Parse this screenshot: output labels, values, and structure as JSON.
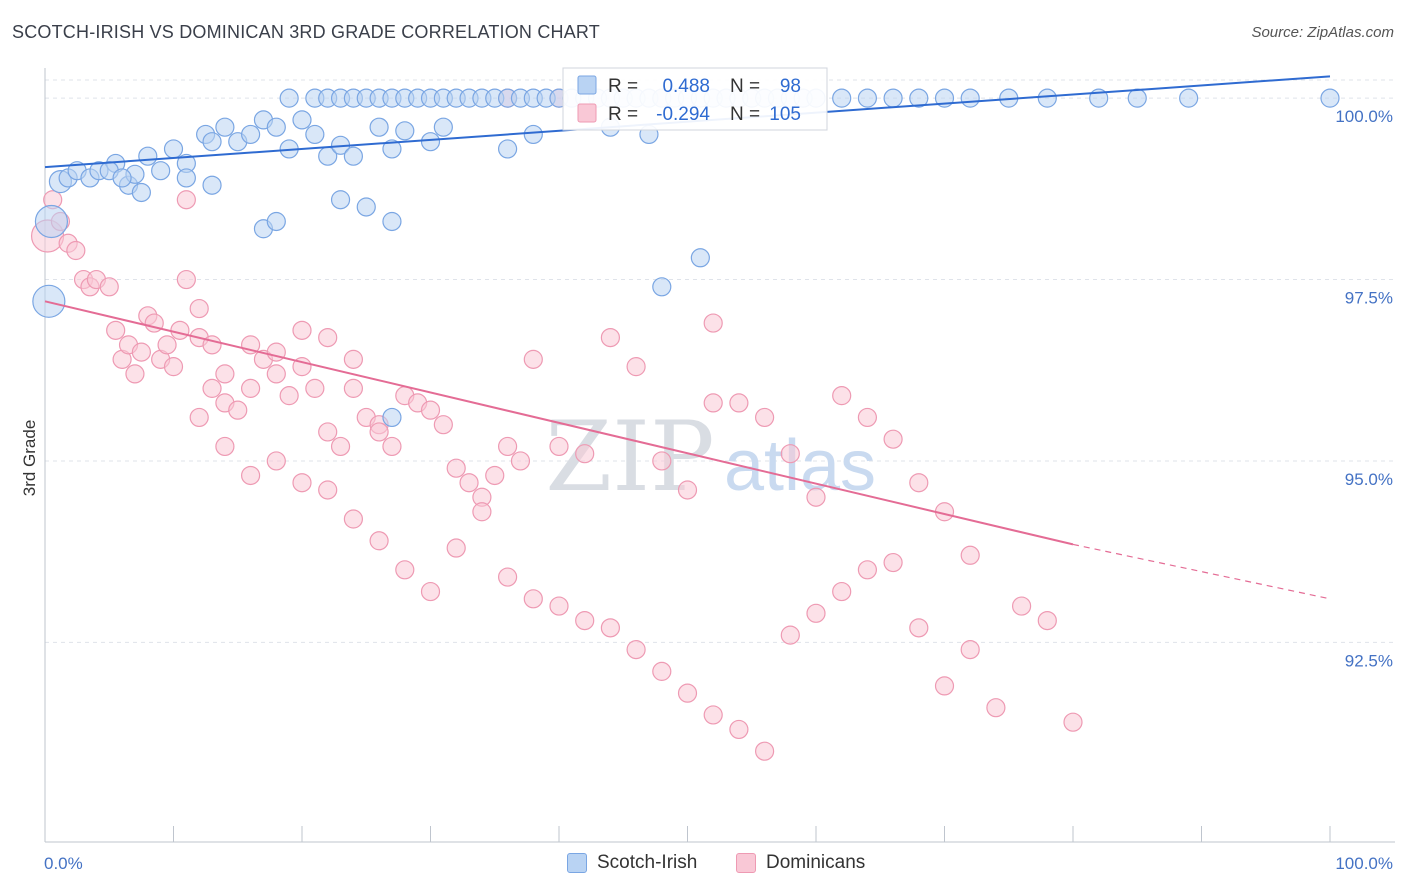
{
  "title": "SCOTCH-IRISH VS DOMINICAN 3RD GRADE CORRELATION CHART",
  "source": "Source: ZipAtlas.com",
  "watermark": {
    "zip": "ZIP",
    "atlas": "atlas"
  },
  "legend_box": {
    "rows": [
      {
        "r_label": "R =",
        "r_value": "0.488",
        "n_label": "N =",
        "n_value": "98",
        "color": "#8db4ea"
      },
      {
        "r_label": "R =",
        "r_value": "-0.294",
        "n_label": "N =",
        "n_value": "105",
        "color": "#f4a9c0"
      }
    ]
  },
  "bottom_legend": [
    {
      "label": "Scotch-Irish",
      "color": "#b9d3f3",
      "border": "#7aa6e3"
    },
    {
      "label": "Dominicans",
      "color": "#f9c8d6",
      "border": "#ee9ab3"
    }
  ],
  "chart_data": {
    "type": "scatter",
    "title": "SCOTCH-IRISH VS DOMINICAN 3RD GRADE CORRELATION CHART",
    "xlabel": "",
    "ylabel": "3rd Grade",
    "xlim": [
      0,
      100
    ],
    "ylim": [
      90.3,
      100.25
    ],
    "x_tick_labels": [
      "0.0%",
      "100.0%"
    ],
    "y_ticks": [
      92.5,
      95.0,
      97.5,
      100.0
    ],
    "y_tick_labels": [
      "92.5%",
      "95.0%",
      "97.5%",
      "100.0%"
    ],
    "grid": true,
    "legend": "top-center",
    "series": [
      {
        "name": "Scotch-Irish",
        "color": "#7aa6e3",
        "fill": "#b9d3f3",
        "r": 0.488,
        "n": 98,
        "trend": {
          "x": [
            0,
            100
          ],
          "y": [
            99.05,
            100.3
          ]
        },
        "points": [
          [
            0.5,
            98.3,
            16
          ],
          [
            0.3,
            97.2,
            16
          ],
          [
            1.2,
            98.85,
            11
          ],
          [
            1.8,
            98.9,
            9
          ],
          [
            2.5,
            99.0,
            9
          ],
          [
            3.5,
            98.9,
            9
          ],
          [
            4.2,
            99.0,
            9
          ],
          [
            5.5,
            99.1,
            9
          ],
          [
            6.5,
            98.8,
            9
          ],
          [
            7,
            98.95,
            9
          ],
          [
            8,
            99.2,
            9
          ],
          [
            9,
            99.0,
            9
          ],
          [
            10,
            99.3,
            9
          ],
          [
            11,
            99.1,
            9
          ],
          [
            12.5,
            99.5,
            9
          ],
          [
            13,
            99.4,
            9
          ],
          [
            14,
            99.6,
            9
          ],
          [
            15,
            99.4,
            9
          ],
          [
            16,
            99.5,
            9
          ],
          [
            17,
            99.7,
            9
          ],
          [
            18,
            99.6,
            9
          ],
          [
            19,
            99.3,
            9
          ],
          [
            20,
            99.7,
            9
          ],
          [
            21,
            99.5,
            9
          ],
          [
            22,
            99.2,
            9
          ],
          [
            23,
            99.35,
            9
          ],
          [
            24,
            99.2,
            9
          ],
          [
            26,
            99.6,
            9
          ],
          [
            27,
            99.3,
            9
          ],
          [
            28,
            99.55,
            9
          ],
          [
            30,
            99.4,
            9
          ],
          [
            31,
            99.6,
            9
          ],
          [
            5,
            99.0,
            9
          ],
          [
            6,
            98.9,
            9
          ],
          [
            7.5,
            98.7,
            9
          ],
          [
            11,
            98.9,
            9
          ],
          [
            13,
            98.8,
            9
          ],
          [
            17,
            98.2,
            9
          ],
          [
            18,
            98.3,
            9
          ],
          [
            23,
            98.6,
            9
          ],
          [
            27,
            98.3,
            9
          ],
          [
            25,
            98.5,
            9
          ],
          [
            36,
            99.3,
            9
          ],
          [
            38,
            99.5,
            9
          ],
          [
            44,
            99.6,
            9
          ],
          [
            47,
            99.5,
            9
          ],
          [
            51,
            97.8,
            9
          ],
          [
            48,
            97.4,
            9
          ],
          [
            27,
            95.6,
            9
          ],
          [
            19,
            100.0,
            9
          ],
          [
            21,
            100.0,
            9
          ],
          [
            22,
            100.0,
            9
          ],
          [
            23,
            100.0,
            9
          ],
          [
            24,
            100.0,
            9
          ],
          [
            25,
            100.0,
            9
          ],
          [
            26,
            100.0,
            9
          ],
          [
            27,
            100.0,
            9
          ],
          [
            28,
            100.0,
            9
          ],
          [
            29,
            100.0,
            9
          ],
          [
            30,
            100.0,
            9
          ],
          [
            31,
            100.0,
            9
          ],
          [
            32,
            100.0,
            9
          ],
          [
            33,
            100.0,
            9
          ],
          [
            34,
            100.0,
            9
          ],
          [
            35,
            100.0,
            9
          ],
          [
            36,
            100.0,
            9
          ],
          [
            37,
            100.0,
            9
          ],
          [
            38,
            100.0,
            9
          ],
          [
            39,
            100.0,
            9
          ],
          [
            40,
            100.0,
            9
          ],
          [
            41,
            100.0,
            9
          ],
          [
            42,
            100.0,
            9
          ],
          [
            43,
            100.0,
            9
          ],
          [
            44,
            100.0,
            9
          ],
          [
            45,
            100.0,
            9
          ],
          [
            46,
            100.0,
            9
          ],
          [
            47,
            100.0,
            9
          ],
          [
            48,
            100.0,
            9
          ],
          [
            49,
            100.0,
            9
          ],
          [
            50,
            100.0,
            9
          ],
          [
            51,
            100.0,
            9
          ],
          [
            52,
            100.0,
            9
          ],
          [
            53,
            100.0,
            9
          ],
          [
            54,
            100.0,
            9
          ],
          [
            55,
            100.0,
            9
          ],
          [
            56,
            100.0,
            9
          ],
          [
            57,
            100.0,
            9
          ],
          [
            58,
            100.0,
            9
          ],
          [
            59,
            100.0,
            9
          ],
          [
            60,
            100.0,
            9
          ],
          [
            62,
            100.0,
            9
          ],
          [
            64,
            100.0,
            9
          ],
          [
            66,
            100.0,
            9
          ],
          [
            68,
            100.0,
            9
          ],
          [
            70,
            100.0,
            9
          ],
          [
            72,
            100.0,
            9
          ],
          [
            75,
            100.0,
            9
          ],
          [
            78,
            100.0,
            9
          ],
          [
            82,
            100.0,
            9
          ],
          [
            85,
            100.0,
            9
          ],
          [
            89,
            100.0,
            9
          ],
          [
            100,
            100.0,
            9
          ]
        ]
      },
      {
        "name": "Dominicans",
        "color": "#ee9ab3",
        "fill": "#f9c8d6",
        "r": -0.294,
        "n": 105,
        "trend": {
          "x": [
            0,
            80
          ],
          "y": [
            97.2,
            93.85
          ]
        },
        "trend_dashed": {
          "x": [
            80,
            100
          ],
          "y": [
            93.85,
            93.1
          ]
        },
        "points": [
          [
            0.2,
            98.1,
            16
          ],
          [
            0.6,
            98.6,
            9
          ],
          [
            1.2,
            98.3,
            9
          ],
          [
            1.8,
            98.0,
            9
          ],
          [
            2.4,
            97.9,
            9
          ],
          [
            3.0,
            97.5,
            9
          ],
          [
            3.5,
            97.4,
            9
          ],
          [
            4.0,
            97.5,
            9
          ],
          [
            5.0,
            97.4,
            9
          ],
          [
            5.5,
            96.8,
            9
          ],
          [
            6.0,
            96.4,
            9
          ],
          [
            6.5,
            96.6,
            9
          ],
          [
            7.0,
            96.2,
            9
          ],
          [
            7.5,
            96.5,
            9
          ],
          [
            8.0,
            97.0,
            9
          ],
          [
            8.5,
            96.9,
            9
          ],
          [
            9.0,
            96.4,
            9
          ],
          [
            9.5,
            96.6,
            9
          ],
          [
            10,
            96.3,
            9
          ],
          [
            10.5,
            96.8,
            9
          ],
          [
            11,
            97.5,
            9
          ],
          [
            12,
            96.7,
            9
          ],
          [
            13,
            96.0,
            9
          ],
          [
            14,
            95.8,
            9
          ],
          [
            15,
            95.7,
            9
          ],
          [
            16,
            96.0,
            9
          ],
          [
            17,
            96.4,
            9
          ],
          [
            18,
            96.2,
            9
          ],
          [
            19,
            95.9,
            9
          ],
          [
            20,
            96.3,
            9
          ],
          [
            21,
            96.0,
            9
          ],
          [
            22,
            95.4,
            9
          ],
          [
            23,
            95.2,
            9
          ],
          [
            24,
            96.0,
            9
          ],
          [
            25,
            95.6,
            9
          ],
          [
            26,
            95.5,
            9
          ],
          [
            27,
            95.2,
            9
          ],
          [
            28,
            95.9,
            9
          ],
          [
            29,
            95.8,
            9
          ],
          [
            30,
            95.7,
            9
          ],
          [
            31,
            95.5,
            9
          ],
          [
            32,
            94.9,
            9
          ],
          [
            33,
            94.7,
            9
          ],
          [
            34,
            94.5,
            9
          ],
          [
            35,
            94.8,
            9
          ],
          [
            36,
            95.2,
            9
          ],
          [
            37,
            95.0,
            9
          ],
          [
            38,
            96.4,
            9
          ],
          [
            40,
            95.2,
            9
          ],
          [
            42,
            95.1,
            9
          ],
          [
            44,
            96.7,
            9
          ],
          [
            46,
            96.3,
            9
          ],
          [
            48,
            95.0,
            9
          ],
          [
            50,
            94.6,
            9
          ],
          [
            52,
            96.9,
            9
          ],
          [
            54,
            95.8,
            9
          ],
          [
            56,
            95.6,
            9
          ],
          [
            58,
            95.1,
            9
          ],
          [
            60,
            94.5,
            9
          ],
          [
            62,
            95.9,
            9
          ],
          [
            64,
            95.6,
            9
          ],
          [
            66,
            95.3,
            9
          ],
          [
            68,
            94.7,
            9
          ],
          [
            70,
            94.3,
            9
          ],
          [
            72,
            93.7,
            9
          ],
          [
            11,
            98.6,
            9
          ],
          [
            12,
            97.1,
            9
          ],
          [
            13,
            96.6,
            9
          ],
          [
            14,
            96.2,
            9
          ],
          [
            16,
            96.6,
            9
          ],
          [
            18,
            96.5,
            9
          ],
          [
            20,
            96.8,
            9
          ],
          [
            22,
            96.7,
            9
          ],
          [
            24,
            96.4,
            9
          ],
          [
            26,
            95.4,
            9
          ],
          [
            12,
            95.6,
            9
          ],
          [
            14,
            95.2,
            9
          ],
          [
            16,
            94.8,
            9
          ],
          [
            18,
            95.0,
            9
          ],
          [
            20,
            94.7,
            9
          ],
          [
            22,
            94.6,
            9
          ],
          [
            24,
            94.2,
            9
          ],
          [
            26,
            93.9,
            9
          ],
          [
            28,
            93.5,
            9
          ],
          [
            30,
            93.2,
            9
          ],
          [
            32,
            93.8,
            9
          ],
          [
            34,
            94.3,
            9
          ],
          [
            36,
            93.4,
            9
          ],
          [
            38,
            93.1,
            9
          ],
          [
            40,
            93.0,
            9
          ],
          [
            42,
            92.8,
            9
          ],
          [
            44,
            92.7,
            9
          ],
          [
            46,
            92.4,
            9
          ],
          [
            48,
            92.1,
            9
          ],
          [
            50,
            91.8,
            9
          ],
          [
            52,
            91.5,
            9
          ],
          [
            54,
            91.3,
            9
          ],
          [
            56,
            91.0,
            9
          ],
          [
            58,
            92.6,
            9
          ],
          [
            60,
            92.9,
            9
          ],
          [
            62,
            93.2,
            9
          ],
          [
            64,
            93.5,
            9
          ],
          [
            66,
            93.6,
            9
          ],
          [
            68,
            92.7,
            9
          ],
          [
            70,
            91.9,
            9
          ],
          [
            72,
            92.4,
            9
          ],
          [
            74,
            91.6,
            9
          ],
          [
            76,
            93.0,
            9
          ],
          [
            78,
            92.8,
            9
          ],
          [
            80,
            91.4,
            9
          ],
          [
            52,
            95.8,
            9
          ],
          [
            48,
            100.0,
            9
          ],
          [
            36,
            100.0,
            9
          ],
          [
            40,
            100.0,
            9
          ]
        ]
      }
    ]
  }
}
